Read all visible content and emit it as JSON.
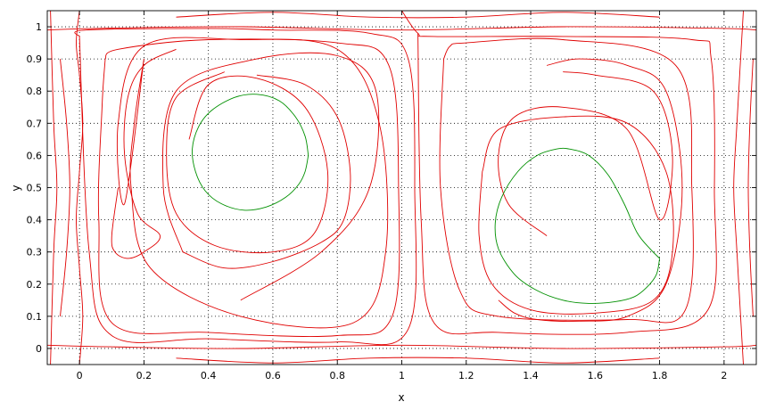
{
  "chart_data": {
    "type": "line",
    "title": "",
    "xlabel": "x",
    "ylabel": "y",
    "xlim": [
      -0.1,
      2.1
    ],
    "ylim": [
      -0.05,
      1.05
    ],
    "xticks": [
      "0",
      "0.2",
      "0.4",
      "0.6",
      "0.8",
      "1",
      "1.2",
      "1.4",
      "1.6",
      "1.8",
      "2"
    ],
    "yticks": [
      "0",
      "0.1",
      "0.2",
      "0.3",
      "0.4",
      "0.5",
      "0.6",
      "0.7",
      "0.8",
      "0.9",
      "1"
    ],
    "grid": true,
    "colors": {
      "streamlines": "#e00000",
      "boundary": "#009000"
    },
    "boundary_curves": [
      {
        "x": [
          0.71,
          0.7,
          0.67,
          0.62,
          0.55,
          0.48,
          0.41,
          0.37,
          0.35,
          0.36,
          0.39,
          0.44,
          0.51,
          0.58,
          0.64,
          0.68,
          0.7,
          0.71
        ],
        "y": [
          0.6,
          0.66,
          0.72,
          0.77,
          0.79,
          0.78,
          0.74,
          0.69,
          0.62,
          0.55,
          0.49,
          0.45,
          0.43,
          0.44,
          0.47,
          0.51,
          0.55,
          0.6
        ]
      },
      {
        "x": [
          1.8,
          1.79,
          1.76,
          1.72,
          1.66,
          1.58,
          1.5,
          1.42,
          1.35,
          1.3,
          1.29,
          1.31,
          1.36,
          1.42,
          1.48,
          1.52,
          1.58,
          1.64,
          1.69,
          1.73,
          1.77,
          1.8
        ],
        "y": [
          0.28,
          0.23,
          0.19,
          0.16,
          0.145,
          0.14,
          0.15,
          0.18,
          0.23,
          0.31,
          0.39,
          0.47,
          0.55,
          0.6,
          0.62,
          0.62,
          0.6,
          0.54,
          0.45,
          0.36,
          0.31,
          0.28
        ]
      }
    ],
    "streamlines": [
      {
        "x": [
          0.0,
          0.01,
          0.0,
          -0.01,
          0.0,
          0.01,
          0.0,
          -0.01,
          0.0
        ],
        "y": [
          -0.05,
          0.1,
          0.25,
          0.4,
          0.55,
          0.7,
          0.85,
          0.95,
          1.05
        ]
      },
      {
        "x": [
          0.0,
          0.02,
          0.4,
          0.6,
          0.9,
          1.02,
          1.04,
          1.02,
          0.8,
          0.4,
          0.1,
          0.03,
          0.0
        ],
        "y": [
          0.97,
          0.99,
          0.995,
          0.99,
          0.98,
          0.9,
          0.5,
          0.06,
          0.02,
          0.03,
          0.04,
          0.3,
          0.97
        ]
      },
      {
        "x": [
          0.08,
          0.12,
          0.4,
          0.8,
          0.96,
          0.99,
          0.97,
          0.8,
          0.4,
          0.1,
          0.06,
          0.07,
          0.08
        ],
        "y": [
          0.9,
          0.93,
          0.96,
          0.95,
          0.88,
          0.5,
          0.1,
          0.04,
          0.05,
          0.08,
          0.4,
          0.75,
          0.9
        ]
      },
      {
        "x": [
          0.2,
          0.17,
          0.16,
          0.22,
          0.5,
          0.85,
          0.95,
          0.93,
          0.8,
          0.5,
          0.2,
          0.12,
          0.14,
          0.2
        ],
        "y": [
          0.9,
          0.7,
          0.5,
          0.25,
          0.1,
          0.08,
          0.3,
          0.7,
          0.93,
          0.96,
          0.94,
          0.7,
          0.45,
          0.9
        ]
      },
      {
        "x": [
          0.32,
          0.26,
          0.3,
          0.55,
          0.8,
          0.92,
          0.9,
          0.75,
          0.5
        ],
        "y": [
          0.3,
          0.5,
          0.8,
          0.9,
          0.91,
          0.8,
          0.5,
          0.3,
          0.15
        ]
      },
      {
        "x": [
          0.12,
          0.1,
          0.11,
          0.15,
          0.2,
          0.25,
          0.18,
          0.14,
          0.15,
          0.2,
          0.3
        ],
        "y": [
          0.5,
          0.35,
          0.3,
          0.28,
          0.3,
          0.35,
          0.42,
          0.6,
          0.78,
          0.88,
          0.93
        ]
      },
      {
        "x": [
          0.45,
          0.3,
          0.27,
          0.3,
          0.42,
          0.6,
          0.73,
          0.77,
          0.7,
          0.55,
          0.4,
          0.34
        ],
        "y": [
          0.86,
          0.78,
          0.6,
          0.42,
          0.32,
          0.3,
          0.36,
          0.55,
          0.75,
          0.84,
          0.82,
          0.65
        ]
      },
      {
        "x": [
          0.55,
          0.7,
          0.8,
          0.84,
          0.82,
          0.75,
          0.6,
          0.45,
          0.32
        ],
        "y": [
          0.85,
          0.82,
          0.72,
          0.55,
          0.4,
          0.33,
          0.27,
          0.25,
          0.3
        ]
      },
      {
        "x": [
          1.0,
          1.05,
          1.1,
          1.5,
          1.9,
          1.96,
          1.97,
          1.95,
          1.7,
          1.3,
          1.1,
          1.06,
          1.05
        ],
        "y": [
          1.05,
          0.98,
          0.97,
          0.97,
          0.96,
          0.9,
          0.5,
          0.12,
          0.05,
          0.05,
          0.08,
          0.4,
          0.98
        ]
      },
      {
        "x": [
          1.13,
          1.15,
          1.2,
          1.5,
          1.85,
          1.9,
          1.88,
          1.7,
          1.3,
          1.18,
          1.12,
          1.13
        ],
        "y": [
          0.9,
          0.94,
          0.95,
          0.96,
          0.88,
          0.5,
          0.12,
          0.09,
          0.1,
          0.18,
          0.5,
          0.9
        ]
      },
      {
        "x": [
          1.25,
          1.24,
          1.28,
          1.4,
          1.6,
          1.78,
          1.84,
          1.82,
          1.7,
          1.5,
          1.3,
          1.25
        ],
        "y": [
          0.55,
          0.35,
          0.2,
          0.12,
          0.11,
          0.15,
          0.3,
          0.55,
          0.7,
          0.72,
          0.68,
          0.55
        ]
      },
      {
        "x": [
          1.5,
          1.6,
          1.78,
          1.84,
          1.8,
          1.7,
          1.5,
          1.35,
          1.3,
          1.33,
          1.45
        ],
        "y": [
          0.86,
          0.85,
          0.8,
          0.6,
          0.4,
          0.68,
          0.75,
          0.72,
          0.6,
          0.45,
          0.35
        ]
      },
      {
        "x": [
          1.3,
          1.35,
          1.42,
          1.55,
          1.7,
          1.82,
          1.87,
          1.82,
          1.7,
          1.55,
          1.45
        ],
        "y": [
          0.15,
          0.11,
          0.09,
          0.085,
          0.1,
          0.2,
          0.5,
          0.8,
          0.88,
          0.9,
          0.88
        ]
      },
      {
        "x": [
          -0.1,
          0.1,
          0.5,
          1.0,
          1.5,
          2.0,
          2.1
        ],
        "y": [
          0.01,
          0.005,
          0.0,
          0.01,
          0.0,
          0.005,
          0.01
        ]
      },
      {
        "x": [
          -0.1,
          0.05,
          0.5,
          1.0,
          1.5,
          2.0,
          2.1
        ],
        "y": [
          0.99,
          0.995,
          1.0,
          0.99,
          1.0,
          0.995,
          0.99
        ]
      },
      {
        "x": [
          -0.09,
          -0.08,
          -0.07,
          -0.08,
          -0.09
        ],
        "y": [
          -0.05,
          0.3,
          0.5,
          0.7,
          1.05
        ]
      },
      {
        "x": [
          -0.06,
          -0.04,
          -0.03,
          -0.04,
          -0.06
        ],
        "y": [
          0.9,
          0.7,
          0.5,
          0.3,
          0.1
        ]
      },
      {
        "x": [
          2.06,
          2.04,
          2.03,
          2.04,
          2.06
        ],
        "y": [
          -0.05,
          0.3,
          0.5,
          0.7,
          1.05
        ]
      },
      {
        "x": [
          2.09,
          2.08,
          2.075,
          2.08,
          2.09
        ],
        "y": [
          0.9,
          0.7,
          0.5,
          0.3,
          0.1
        ]
      },
      {
        "x": [
          0.3,
          0.6,
          0.9,
          1.2,
          1.5,
          1.8
        ],
        "y": [
          -0.03,
          -0.045,
          -0.03,
          -0.03,
          -0.045,
          -0.03
        ]
      },
      {
        "x": [
          0.3,
          0.6,
          0.9,
          1.2,
          1.5,
          1.8
        ],
        "y": [
          1.03,
          1.045,
          1.03,
          1.03,
          1.045,
          1.03
        ]
      }
    ]
  }
}
